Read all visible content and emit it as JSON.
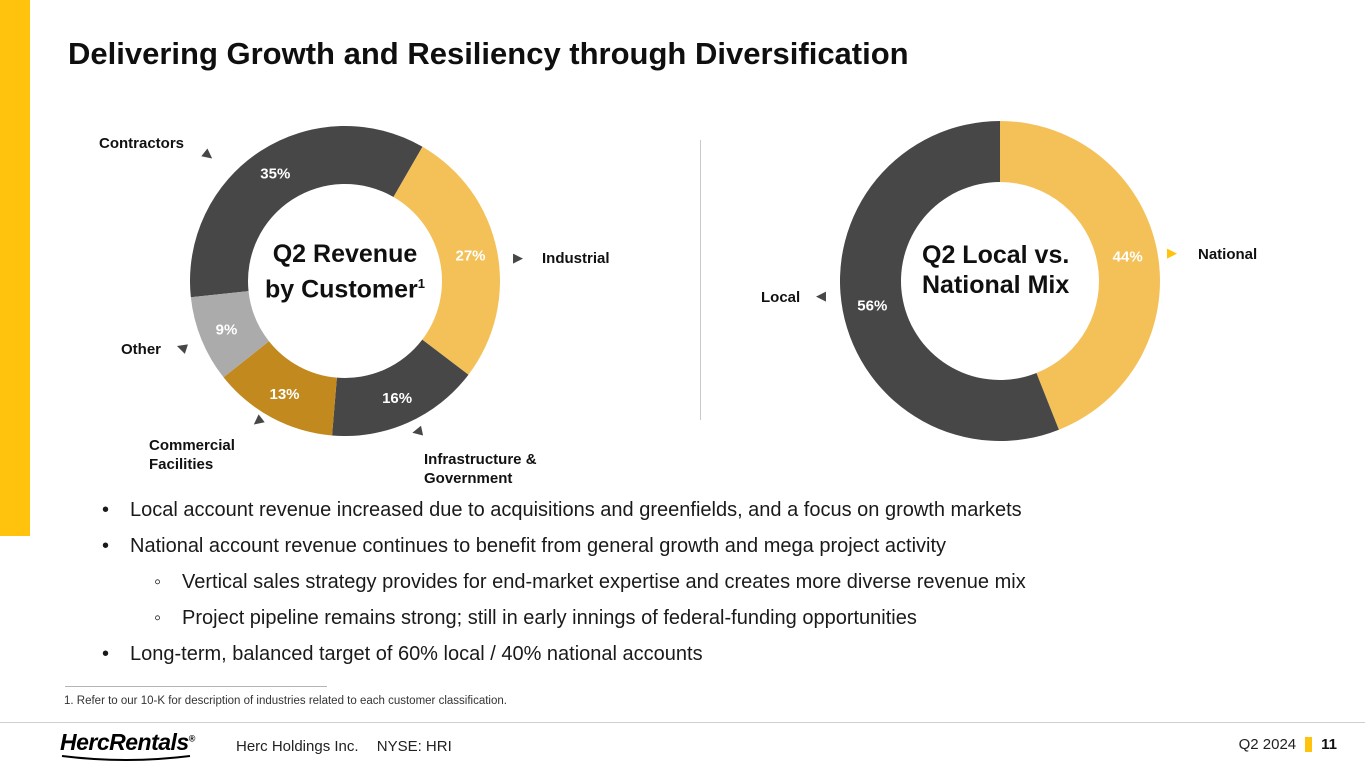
{
  "title": "Delivering Growth and Resiliency through Diversification",
  "colors": {
    "accent_yellow": "#FFC20D",
    "dark_gray": "#474747",
    "chart_yellow": "#F4C159",
    "gold": "#C2891E",
    "light_gray": "#ABABAB"
  },
  "icons": {
    "arrow_right": "▶",
    "arrow_left": "◀"
  },
  "chart_data": [
    {
      "type": "pie",
      "donut": true,
      "title": "Q2 Revenue by Customer",
      "title_note_superscript": "1",
      "center_label": [
        "Q2 Revenue",
        "by Customer"
      ],
      "labels": [
        "Contractors",
        "Industrial",
        "Infrastructure & Government",
        "Commercial Facilities",
        "Other"
      ],
      "values": [
        35,
        27,
        16,
        13,
        9
      ],
      "unit": "%",
      "colors": [
        "#474747",
        "#F4C159",
        "#474747",
        "#C2891E",
        "#ABABAB"
      ],
      "start_angle_deg": 264,
      "value_label_color": "#FFFFFF",
      "legend": false,
      "label_style": "external-callouts"
    },
    {
      "type": "pie",
      "donut": true,
      "title": "Q2 Local vs. National Mix",
      "center_label": [
        "Q2 Local vs.",
        "National Mix"
      ],
      "labels": [
        "National",
        "Local"
      ],
      "values": [
        44,
        56
      ],
      "unit": "%",
      "colors": [
        "#F4C159",
        "#474747"
      ],
      "start_angle_deg": 0,
      "value_label_color": "#FFFFFF",
      "legend": false,
      "label_style": "external-callouts"
    }
  ],
  "bullets": [
    {
      "level": 1,
      "marker": "•",
      "text": "Local account revenue increased due to acquisitions and greenfields, and a focus on growth markets"
    },
    {
      "level": 1,
      "marker": "•",
      "text": "National account revenue continues to benefit from general growth and mega project activity"
    },
    {
      "level": 2,
      "marker": "◦",
      "text": "Vertical sales strategy provides for end-market expertise and creates more diverse revenue mix"
    },
    {
      "level": 2,
      "marker": "◦",
      "text": "Project pipeline remains strong; still in early innings of federal-funding opportunities"
    },
    {
      "level": 1,
      "marker": "•",
      "text": "Long-term, balanced target of 60% local / 40% national accounts"
    }
  ],
  "footnote": "1. Refer to our 10-K for description of industries related to each customer classification.",
  "footer": {
    "logo_text": "HercRentals",
    "logo_registered": "®",
    "company": "Herc Holdings Inc.",
    "ticker": "NYSE: HRI",
    "period": "Q2 2024",
    "page_number": "11"
  }
}
